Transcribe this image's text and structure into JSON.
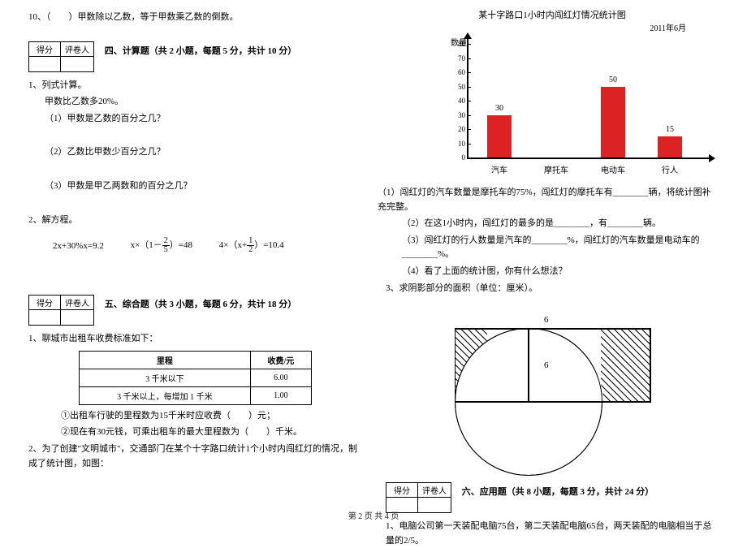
{
  "footer": "第 2 页  共 4 页",
  "left": {
    "q10": "10、（　　）甲数除以乙数，等于甲数乘乙数的倒数。",
    "scorebox": {
      "c1": "得分",
      "c2": "评卷人"
    },
    "sec4_title": "四、计算题（共 2 小题，每题 5 分，共计 10 分）",
    "s4_q1": "1、列式计算。",
    "s4_q1a": "甲数比乙数多20%。",
    "s4_q1_1": "（1）甲数是乙数的百分之几？",
    "s4_q1_2": "（2）乙数比甲数少百分之几？",
    "s4_q1_3": "（3）甲数是甲乙两数和的百分之几？",
    "s4_q2": "2、解方程。",
    "eq1_a": "2x+30%x=9.2",
    "eq2_pre": "x×（1－",
    "eq2_frac_n": "2",
    "eq2_frac_d": "5",
    "eq2_post": "）=48",
    "eq3_pre": "4×（x+",
    "eq3_frac_n": "1",
    "eq3_frac_d": "2",
    "eq3_post": "）=10.4",
    "sec5_title": "五、综合题（共 3 小题，每题 6 分，共计 18 分）",
    "s5_q1": "1、聊城市出租车收费标准如下：",
    "tbl": {
      "h1": "里程",
      "h2": "收费/元",
      "r1c1": "3 千米以下",
      "r1c2": "6.00",
      "r2c1": "3 千米以上，每增加 1 千米",
      "r2c2": "1.00"
    },
    "s5_q1_1": "①出租车行驶的里程数为15千米时应收费（　　）元；",
    "s5_q1_2": "②现在有30元钱，可乘出租车的最大里程数为（　　）千米。",
    "s5_q2": "2、为了创建\"文明城市\"，交通部门在某个十字路口统计1个小时内闯红灯的情况，制成了统计图，如图："
  },
  "right": {
    "chart_title": "某十字路口1小时内闯红灯情况统计图",
    "chart_date": "2011年6月",
    "y_label": "数量",
    "yticks": [
      "0",
      "10",
      "20",
      "30",
      "40",
      "50",
      "60",
      "70",
      "80"
    ],
    "bars": [
      {
        "label": "汽车",
        "value": 30,
        "show": true
      },
      {
        "label": "摩托车",
        "value": 0,
        "show": false
      },
      {
        "label": "电动车",
        "value": 50,
        "show": true
      },
      {
        "label": "行人",
        "value": 15,
        "show": true
      }
    ],
    "q1": "（1）闯红灯的汽车数量是摩托车的75%，闯红灯的摩托车有________辆，将统计图补充完整。",
    "q2": "（2）在这1小时内，闯红灯的最多的是________，有________辆。",
    "q3": "（3）闯红灯的行人数量是汽车的________%，闯红灯的汽车数量是电动车的________%。",
    "q4": "（4）看了上面的统计图，你有什么想法？",
    "s5_q3": "3、求阴影部分的面积（单位：厘米）。",
    "dim_h": "6",
    "dim_v": "6",
    "sec6_title": "六、应用题（共 8 小题，每题 3 分，共计 24 分）",
    "s6_q1": "1、电脑公司第一天装配电脑75台，第二天装配电脑65台，两天装配的电脑相当于总量的2/5。"
  }
}
